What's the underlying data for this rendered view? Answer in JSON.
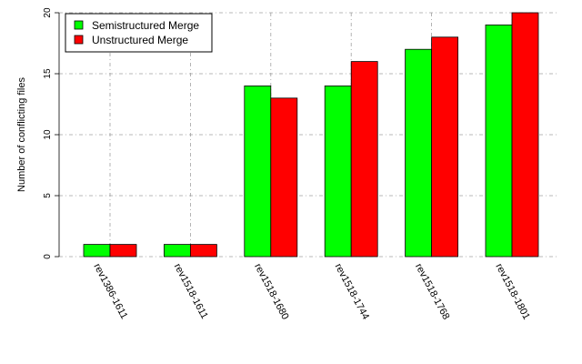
{
  "chart_data": {
    "type": "bar",
    "categories": [
      "rev1386-1611",
      "rev1518-1611",
      "rev1518-1680",
      "rev1518-1744",
      "rev1518-1768",
      "rev1518-1801"
    ],
    "series": [
      {
        "name": "Semistructured Merge",
        "color": "#00ff00",
        "values": [
          1,
          1,
          14,
          14,
          17,
          19
        ]
      },
      {
        "name": "Unstructured Merge",
        "color": "#ff0000",
        "values": [
          1,
          1,
          13,
          16,
          18,
          20
        ]
      }
    ],
    "xlabel": "",
    "ylabel": "Number of conflicting files",
    "ylim": [
      0,
      20
    ],
    "yticks": [
      0,
      5,
      10,
      15,
      20
    ],
    "grid": true,
    "legend_position": "top-left"
  }
}
